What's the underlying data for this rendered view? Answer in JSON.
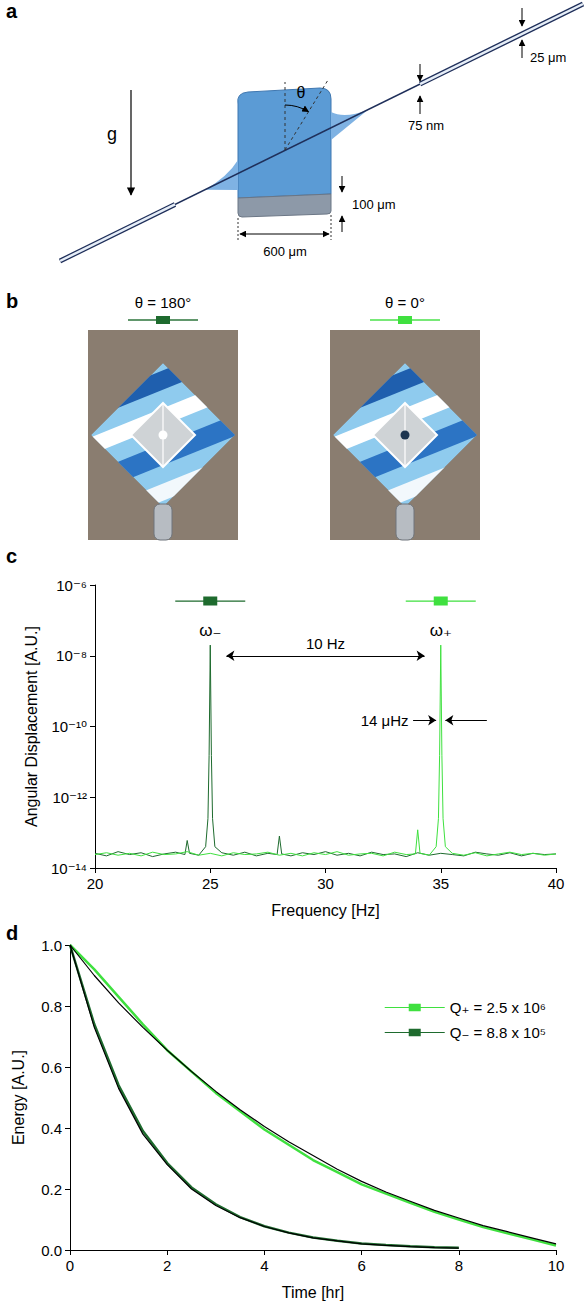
{
  "panel_labels": [
    "a",
    "b",
    "c",
    "d"
  ],
  "diagram": {
    "gravity": "g",
    "angle": "θ",
    "fiber_diameter": "25 μm",
    "fiber_thickness": "75 nm",
    "pad_thickness": "100 μm",
    "pad_width": "600 μm"
  },
  "photos": [
    {
      "label": "θ = 180°",
      "color": "#1e6b2e"
    },
    {
      "label": "θ = 0°",
      "color": "#3fe03f"
    }
  ],
  "chart_data": [
    {
      "type": "line",
      "xlabel": "Frequency [Hz]",
      "ylabel": "Angular Displacement [A.U.]",
      "log": "y",
      "grid": false,
      "xlim": [
        20,
        40
      ],
      "xticks": [
        20,
        25,
        30,
        35,
        40
      ],
      "ylim": [
        1e-14,
        1e-06
      ],
      "yticks": [
        {
          "value": 1e-14,
          "label": "10⁻¹⁴"
        },
        {
          "value": 1e-12,
          "label": "10⁻¹²"
        },
        {
          "value": 1e-10,
          "label": "10⁻¹⁰"
        },
        {
          "value": 1e-08,
          "label": "10⁻⁸"
        },
        {
          "value": 1e-06,
          "label": "10⁻⁶"
        }
      ],
      "series": [
        {
          "name": "ω₋",
          "color": "#1e6b2e",
          "x": [
            20,
            20.5,
            21,
            21.5,
            22,
            22.5,
            23,
            23.5,
            23.9,
            24,
            24.1,
            24.5,
            24.8,
            24.9,
            24.95,
            25,
            25.05,
            25.1,
            25.2,
            25.5,
            26,
            26.5,
            27,
            27.5,
            27.9,
            28,
            28.1,
            28.5,
            29,
            29.5,
            30,
            30.5,
            31,
            31.5,
            32,
            32.5,
            33,
            33.5,
            34,
            34.5,
            35,
            35.5,
            36,
            36.5,
            37,
            37.5,
            38,
            38.5,
            39,
            39.5,
            40
          ],
          "values": [
            2.6e-14,
            2.2e-14,
            2.9e-14,
            2.4e-14,
            2.7e-14,
            2.1e-14,
            2.5e-14,
            2.8e-14,
            2.4e-14,
            6e-14,
            2.6e-14,
            2.3e-14,
            4e-14,
            2.5e-13,
            1.5e-11,
            2e-08,
            1.5e-11,
            2.5e-13,
            4e-14,
            2.7e-14,
            2.3e-14,
            2.8e-14,
            2.2e-14,
            2.6e-14,
            2.4e-14,
            8e-14,
            2.5e-14,
            2.2e-14,
            2.7e-14,
            2.4e-14,
            2.9e-14,
            2.3e-14,
            2.6e-14,
            2.2e-14,
            2.8e-14,
            2.4e-14,
            2.5e-14,
            2.1e-14,
            2.7e-14,
            2.3e-14,
            2.6e-14,
            2.4e-14,
            2.2e-14,
            2.8e-14,
            2.5e-14,
            2.3e-14,
            2.7e-14,
            2.2e-14,
            2.6e-14,
            2.4e-14,
            2.5e-14
          ]
        },
        {
          "name": "ω₊",
          "color": "#3fe03f",
          "x": [
            20,
            20.5,
            21,
            21.5,
            22,
            22.5,
            23,
            23.5,
            24,
            24.5,
            25,
            25.5,
            26,
            26.5,
            27,
            27.5,
            28,
            28.5,
            29,
            29.5,
            30,
            30.5,
            31,
            31.5,
            32,
            32.5,
            33,
            33.5,
            33.9,
            34,
            34.1,
            34.5,
            34.8,
            34.9,
            34.95,
            35,
            35.05,
            35.1,
            35.2,
            35.5,
            36,
            36.5,
            37,
            37.5,
            38,
            38.5,
            39,
            39.5,
            40
          ],
          "values": [
            2.4e-14,
            2.7e-14,
            2.3e-14,
            2.6e-14,
            2.2e-14,
            2.8e-14,
            2.4e-14,
            2.5e-14,
            2.9e-14,
            2.3e-14,
            2.6e-14,
            2.2e-14,
            2.7e-14,
            2.4e-14,
            2.5e-14,
            2.8e-14,
            2.3e-14,
            2.6e-14,
            2.2e-14,
            2.7e-14,
            2.4e-14,
            2.9e-14,
            2.3e-14,
            2.5e-14,
            2.6e-14,
            2.2e-14,
            2.8e-14,
            2.4e-14,
            2.5e-14,
            1.2e-13,
            2.6e-14,
            2.3e-14,
            4e-14,
            2.5e-13,
            1.5e-11,
            2e-08,
            1.5e-11,
            2.5e-13,
            4e-14,
            2.6e-14,
            2.3e-14,
            2.7e-14,
            2.2e-14,
            2.5e-14,
            2.8e-14,
            2.4e-14,
            2.6e-14,
            2.3e-14,
            2.5e-14
          ]
        }
      ],
      "annotations": [
        {
          "text": "10 Hz",
          "y": 1e-08,
          "marker": "double_arrow",
          "arrows": [
            [
              25.7,
              34.3
            ]
          ]
        },
        {
          "text": "14 μHz",
          "y": 1.5e-10,
          "marker": "arrow",
          "arrows": [
            [
              33.8,
              34.8
            ],
            [
              37.0,
              35.2
            ]
          ]
        }
      ]
    },
    {
      "type": "line",
      "xlabel": "Time [hr]",
      "ylabel": "Energy [A.U.]",
      "grid": false,
      "legend": "upper right",
      "xlim": [
        0,
        10
      ],
      "xticks": [
        0,
        2,
        4,
        6,
        8,
        10
      ],
      "ylim": [
        0,
        1
      ],
      "yticks": [
        {
          "value": 0,
          "label": "0.0"
        },
        0.2,
        0.4,
        0.6,
        0.8,
        {
          "value": 1,
          "label": "1.0"
        }
      ],
      "series": [
        {
          "name": "Q₊ = 2.5 x 10⁶",
          "color": "#3fe03f",
          "x": [
            0,
            0.5,
            1,
            1.5,
            2,
            2.5,
            3,
            3.5,
            4,
            4.5,
            5,
            5.5,
            6,
            6.5,
            7,
            7.5,
            8,
            8.5,
            9,
            9.5,
            10
          ],
          "values": [
            1.0,
            0.92,
            0.83,
            0.74,
            0.655,
            0.585,
            0.515,
            0.455,
            0.395,
            0.345,
            0.295,
            0.255,
            0.215,
            0.185,
            0.155,
            0.125,
            0.1,
            0.075,
            0.055,
            0.035,
            0.015
          ]
        },
        {
          "name": "Q₋ = 8.8 x 10⁵",
          "color": "#1e6b2e",
          "x": [
            0,
            0.5,
            1,
            1.5,
            2,
            2.5,
            3,
            3.5,
            4,
            4.5,
            5,
            5.5,
            6,
            6.5,
            7,
            7.5,
            8
          ],
          "values": [
            1.0,
            0.74,
            0.54,
            0.39,
            0.285,
            0.205,
            0.15,
            0.108,
            0.078,
            0.057,
            0.041,
            0.03,
            0.021,
            0.016,
            0.012,
            0.009,
            0.007
          ]
        },
        {
          "color": "#000000",
          "line_style": "solid",
          "x": [
            0,
            0.5,
            1,
            1.5,
            2,
            2.5,
            3,
            3.5,
            4,
            4.5,
            5,
            5.5,
            6,
            6.5,
            7,
            7.5,
            8,
            8.5,
            9,
            9.5,
            10
          ],
          "values": [
            1.0,
            0.9,
            0.81,
            0.73,
            0.655,
            0.585,
            0.52,
            0.46,
            0.405,
            0.355,
            0.31,
            0.265,
            0.225,
            0.19,
            0.16,
            0.13,
            0.105,
            0.08,
            0.06,
            0.04,
            0.02
          ]
        },
        {
          "color": "#000000",
          "line_style": "solid",
          "x": [
            0,
            0.5,
            1,
            1.5,
            2,
            2.5,
            3,
            3.5,
            4,
            4.5,
            5,
            5.5,
            6,
            6.5,
            7,
            7.5,
            8
          ],
          "values": [
            1.0,
            0.73,
            0.53,
            0.38,
            0.28,
            0.2,
            0.146,
            0.106,
            0.077,
            0.056,
            0.04,
            0.03,
            0.02,
            0.015,
            0.011,
            0.008,
            0.006
          ]
        }
      ]
    }
  ]
}
